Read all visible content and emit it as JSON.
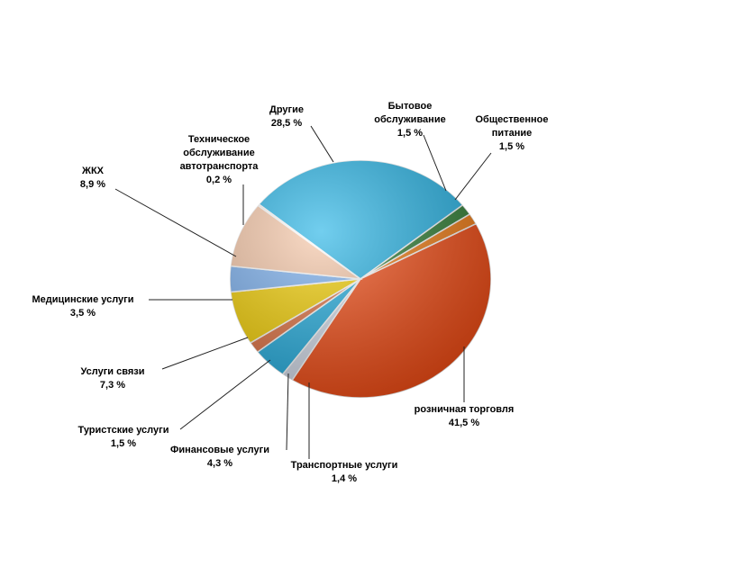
{
  "chart_data": {
    "type": "pie",
    "categories": [
      "Другие",
      "Бытовое\nобслуживание",
      "Общественное\nпитание",
      "розничная  торговля",
      "Транспортные   услуги",
      "Финансовые  услуги",
      "Туристские  услуги",
      "Услуги связи",
      "Медицинские  услуги",
      "ЖКХ",
      "Техническое\nобслуживание\nавтотранспорта"
    ],
    "values": [
      28.5,
      1.5,
      1.5,
      41.5,
      1.4,
      4.3,
      1.5,
      7.3,
      3.5,
      8.9,
      0.2
    ],
    "value_labels": [
      "28,5  %",
      "1,5 %",
      "1,5 %",
      "41,5 %",
      "1,4 %",
      "4,3 %",
      "1,5 %",
      "7,3 %",
      "3,5 %",
      "8,9  %",
      "0,2 %"
    ],
    "colors": [
      "#26b4e6",
      "#2e7d32",
      "#f07a10",
      "#f24a12",
      "#d4dcea",
      "#22aee0",
      "#e07040",
      "#f5d000",
      "#7ab0f0",
      "#f8c8a8",
      "#e8e0d0"
    ]
  }
}
